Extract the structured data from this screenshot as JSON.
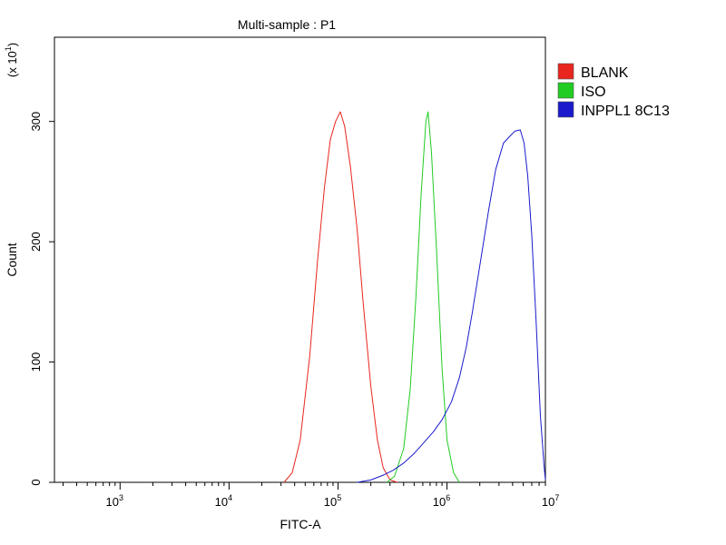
{
  "chart_data": {
    "type": "line",
    "title": "Multi-sample : P1",
    "xlabel": "FITC-A",
    "ylabel": "Count",
    "y_multiplier_label": "(x 10",
    "y_multiplier_exp": "1",
    "x_scale": "log",
    "xlim": [
      250,
      8000000
    ],
    "ylim": [
      0,
      370
    ],
    "x_ticks": [
      {
        "value": 1000,
        "base": "10",
        "exp": "3"
      },
      {
        "value": 10000,
        "base": "10",
        "exp": "4"
      },
      {
        "value": 100000,
        "base": "10",
        "exp": "5"
      },
      {
        "value": 1000000,
        "base": "10",
        "exp": "6"
      },
      {
        "value": 10000000,
        "base": "10",
        "exp": "7"
      }
    ],
    "y_ticks": [
      0,
      100,
      200,
      300
    ],
    "legend_position": "right",
    "series": [
      {
        "name": "BLANK",
        "color": "#e8251e",
        "points": [
          [
            32000,
            0
          ],
          [
            38000,
            8
          ],
          [
            45000,
            35
          ],
          [
            55000,
            105
          ],
          [
            65000,
            185
          ],
          [
            75000,
            245
          ],
          [
            85000,
            285
          ],
          [
            95000,
            300
          ],
          [
            105000,
            308
          ],
          [
            115000,
            296
          ],
          [
            130000,
            262
          ],
          [
            150000,
            210
          ],
          [
            170000,
            150
          ],
          [
            200000,
            80
          ],
          [
            230000,
            35
          ],
          [
            260000,
            12
          ],
          [
            300000,
            2
          ],
          [
            350000,
            0
          ]
        ]
      },
      {
        "name": "ISO",
        "color": "#22cc22",
        "points": [
          [
            280000,
            0
          ],
          [
            330000,
            5
          ],
          [
            400000,
            28
          ],
          [
            460000,
            78
          ],
          [
            520000,
            155
          ],
          [
            580000,
            240
          ],
          [
            640000,
            300
          ],
          [
            670000,
            308
          ],
          [
            720000,
            275
          ],
          [
            800000,
            195
          ],
          [
            900000,
            95
          ],
          [
            1000000,
            35
          ],
          [
            1150000,
            8
          ],
          [
            1300000,
            0
          ]
        ]
      },
      {
        "name": "INPPL1 8C13",
        "color": "#1a1acc",
        "points": [
          [
            150000,
            0
          ],
          [
            200000,
            2
          ],
          [
            260000,
            6
          ],
          [
            320000,
            10
          ],
          [
            400000,
            16
          ],
          [
            500000,
            24
          ],
          [
            600000,
            32
          ],
          [
            750000,
            42
          ],
          [
            900000,
            52
          ],
          [
            1100000,
            67
          ],
          [
            1300000,
            87
          ],
          [
            1500000,
            112
          ],
          [
            1700000,
            140
          ],
          [
            2000000,
            180
          ],
          [
            2400000,
            225
          ],
          [
            2800000,
            260
          ],
          [
            3300000,
            282
          ],
          [
            3800000,
            288
          ],
          [
            4200000,
            292
          ],
          [
            4700000,
            293
          ],
          [
            5100000,
            282
          ],
          [
            5500000,
            255
          ],
          [
            6000000,
            205
          ],
          [
            6600000,
            130
          ],
          [
            7200000,
            55
          ],
          [
            7800000,
            12
          ],
          [
            8000000,
            2
          ]
        ]
      }
    ]
  }
}
